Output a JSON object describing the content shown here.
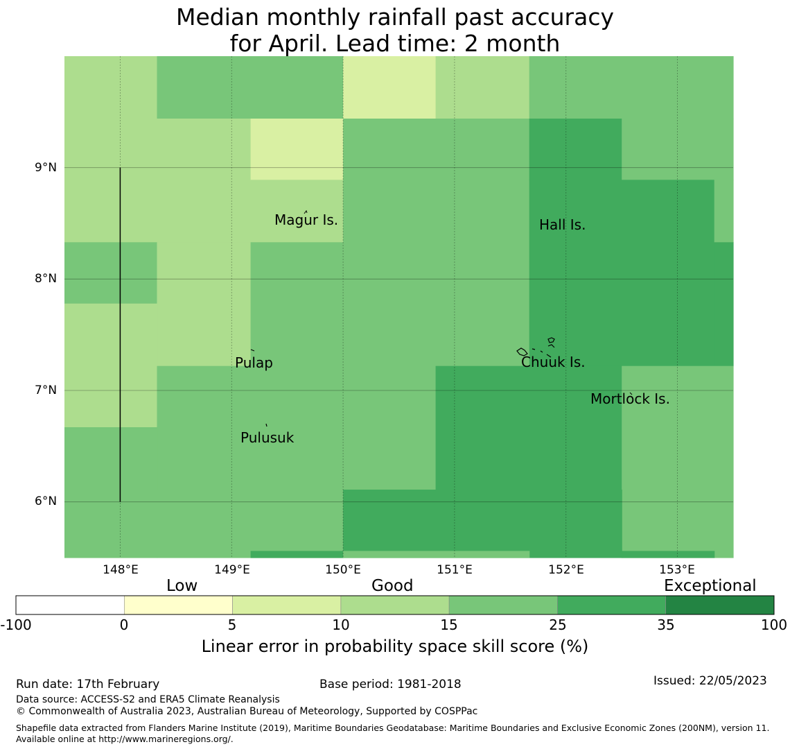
{
  "title": {
    "line1": "Median monthly rainfall past accuracy",
    "line2": "for April. Lead time: 2 month"
  },
  "map": {
    "lon_range": [
      147.5,
      153.5
    ],
    "lat_range": [
      5.5,
      10.0
    ],
    "lat_ticks": [
      {
        "value": 9,
        "label": "9°N"
      },
      {
        "value": 8,
        "label": "8°N"
      },
      {
        "value": 7,
        "label": "7°N"
      },
      {
        "value": 6,
        "label": "6°N"
      }
    ],
    "lon_ticks": [
      {
        "value": 148,
        "label": "148°E"
      },
      {
        "value": 149,
        "label": "149°E"
      },
      {
        "value": 150,
        "label": "150°E"
      },
      {
        "value": 151,
        "label": "151°E"
      },
      {
        "value": 152,
        "label": "152°E"
      },
      {
        "value": 153,
        "label": "153°E"
      }
    ],
    "boundary_line": {
      "lon": 148.0,
      "lat_from": 6.0,
      "lat_to": 9.0
    },
    "skill_grid_note": "cell values are skill-score classes: 1 = 5–10, 2 = 10–15, 3 = 15–25, 4 = 25–35",
    "cells": [
      {
        "lon0": 147.5,
        "lon1": 148.33,
        "lat0": 9.44,
        "lat1": 10.0,
        "class": 2
      },
      {
        "lon0": 148.33,
        "lon1": 150.0,
        "lat0": 9.44,
        "lat1": 10.0,
        "class": 3
      },
      {
        "lon0": 150.0,
        "lon1": 150.83,
        "lat0": 9.44,
        "lat1": 10.0,
        "class": 1
      },
      {
        "lon0": 150.83,
        "lon1": 151.67,
        "lat0": 9.44,
        "lat1": 10.0,
        "class": 2
      },
      {
        "lon0": 151.67,
        "lon1": 153.5,
        "lat0": 9.44,
        "lat1": 10.0,
        "class": 3
      },
      {
        "lon0": 147.5,
        "lon1": 149.17,
        "lat0": 8.33,
        "lat1": 9.44,
        "class": 2
      },
      {
        "lon0": 149.17,
        "lon1": 150.0,
        "lat0": 8.89,
        "lat1": 9.44,
        "class": 1
      },
      {
        "lon0": 149.17,
        "lon1": 150.0,
        "lat0": 8.33,
        "lat1": 8.89,
        "class": 2
      },
      {
        "lon0": 150.0,
        "lon1": 151.67,
        "lat0": 7.22,
        "lat1": 9.44,
        "class": 3
      },
      {
        "lon0": 151.67,
        "lon1": 152.5,
        "lat0": 8.89,
        "lat1": 9.44,
        "class": 4
      },
      {
        "lon0": 152.5,
        "lon1": 153.5,
        "lat0": 8.89,
        "lat1": 9.44,
        "class": 3
      },
      {
        "lon0": 151.67,
        "lon1": 153.33,
        "lat0": 7.22,
        "lat1": 8.89,
        "class": 4
      },
      {
        "lon0": 153.33,
        "lon1": 153.5,
        "lat0": 8.33,
        "lat1": 8.89,
        "class": 3
      },
      {
        "lon0": 153.33,
        "lon1": 153.5,
        "lat0": 7.22,
        "lat1": 8.33,
        "class": 4
      },
      {
        "lon0": 147.5,
        "lon1": 148.33,
        "lat0": 7.78,
        "lat1": 8.33,
        "class": 3
      },
      {
        "lon0": 148.33,
        "lon1": 149.17,
        "lat0": 7.22,
        "lat1": 8.33,
        "class": 2
      },
      {
        "lon0": 149.17,
        "lon1": 150.0,
        "lat0": 7.22,
        "lat1": 8.33,
        "class": 3
      },
      {
        "lon0": 147.5,
        "lon1": 148.33,
        "lat0": 6.67,
        "lat1": 7.78,
        "class": 2
      },
      {
        "lon0": 148.33,
        "lon1": 150.83,
        "lat0": 6.11,
        "lat1": 7.22,
        "class": 3
      },
      {
        "lon0": 147.5,
        "lon1": 148.33,
        "lat0": 5.5,
        "lat1": 6.67,
        "class": 3
      },
      {
        "lon0": 148.33,
        "lon1": 150.0,
        "lat0": 5.5,
        "lat1": 6.11,
        "class": 3
      },
      {
        "lon0": 150.83,
        "lon1": 152.5,
        "lat0": 6.11,
        "lat1": 7.22,
        "class": 4
      },
      {
        "lon0": 152.5,
        "lon1": 153.5,
        "lat0": 5.5,
        "lat1": 7.22,
        "class": 3
      },
      {
        "lon0": 150.0,
        "lon1": 152.5,
        "lat0": 5.5,
        "lat1": 6.11,
        "class": 4
      },
      {
        "lon0": 149.17,
        "lon1": 150.0,
        "lat0": 5.5,
        "lat1": 5.56,
        "class": 4
      },
      {
        "lon0": 150.0,
        "lon1": 151.67,
        "lat0": 5.5,
        "lat1": 5.56,
        "class": 3
      },
      {
        "lon0": 152.5,
        "lon1": 153.33,
        "lat0": 5.5,
        "lat1": 5.56,
        "class": 4
      }
    ],
    "places": [
      {
        "name": "Magur Is.",
        "lon": 149.4,
        "lat": 8.5
      },
      {
        "name": "Hall Is.",
        "lon": 151.8,
        "lat": 8.45
      },
      {
        "name": "Pulap",
        "lon": 149.05,
        "lat": 7.22
      },
      {
        "name": "Chuuk Is.",
        "lon": 151.6,
        "lat": 7.23
      },
      {
        "name": "Mortlock Is.",
        "lon": 152.2,
        "lat": 6.9
      },
      {
        "name": "Pulusuk",
        "lon": 149.1,
        "lat": 6.56
      }
    ]
  },
  "colorbar": {
    "categories": [
      {
        "label": "Low",
        "position": "left"
      },
      {
        "label": "Good",
        "position": "center"
      },
      {
        "label": "Exceptional",
        "position": "right"
      }
    ],
    "ticks": [
      "-100",
      "0",
      "5",
      "10",
      "15",
      "25",
      "35",
      "100"
    ],
    "bins": [
      {
        "from": -100,
        "to": 0,
        "color": "#ffffff"
      },
      {
        "from": 0,
        "to": 5,
        "color": "#ffffcc"
      },
      {
        "from": 5,
        "to": 10,
        "color": "#d9f0a3"
      },
      {
        "from": 10,
        "to": 15,
        "color": "#addd8e"
      },
      {
        "from": 15,
        "to": 25,
        "color": "#78c679"
      },
      {
        "from": 25,
        "to": 35,
        "color": "#41ab5d"
      },
      {
        "from": 35,
        "to": 100,
        "color": "#238443"
      }
    ],
    "label": "Linear error in probability space skill score (%)"
  },
  "footer": {
    "run_date": "Run date: 17th February",
    "base_period": "Base period: 1981-2018",
    "issued": "Issued: 22/05/2023",
    "data_source": "Data source: ACCESS-S2 and ERA5 Climate Reanalysis",
    "copyright": "© Commonwealth of Australia 2023, Australian Bureau of Meteorology, Supported by COSPPac",
    "shapefile": "Shapefile data extracted from Flanders Marine Institute (2019), Maritime Boundaries Geodatabase: Maritime Boundaries and Exclusive Economic Zones (200NM), version 11. Available online at http://www.marineregions.org/."
  }
}
